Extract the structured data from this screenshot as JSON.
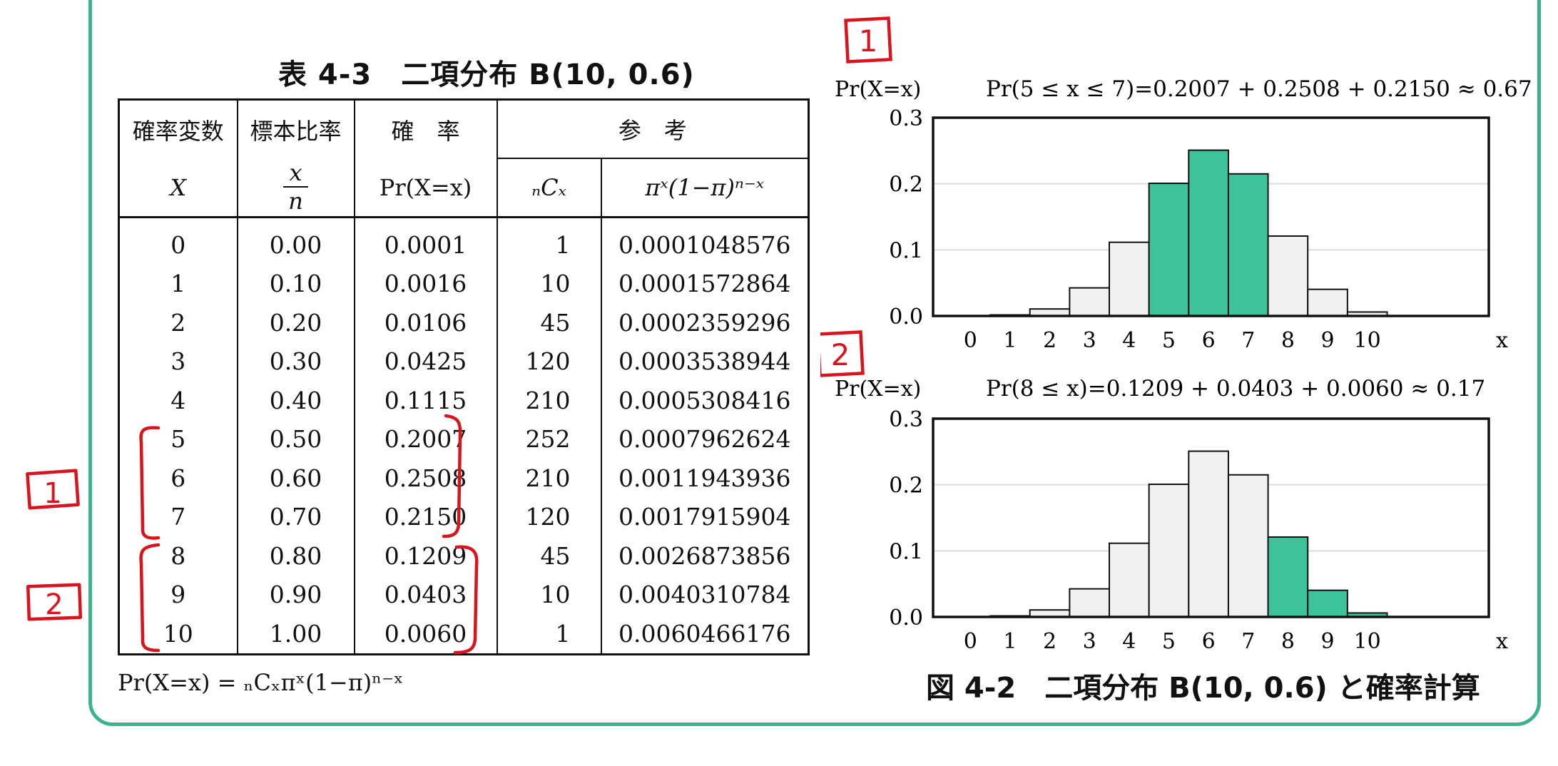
{
  "table": {
    "title": "表 4-3　二項分布 B(10, 0.6)",
    "headers": {
      "var_top": "確率変数",
      "var_sym": "X",
      "ratio_top": "標本比率",
      "ratio_num": "x",
      "ratio_den": "n",
      "prob_top": "確　率",
      "prob_sym": "Pr(X=x)",
      "ref_top": "参　考",
      "ref_comb": "ₙCₓ",
      "ref_power": "πˣ(1−π)ⁿ⁻ˣ"
    },
    "rows": [
      {
        "x": "0",
        "ratio": "0.00",
        "prob": "0.0001",
        "comb": "1",
        "power": "0.0001048576"
      },
      {
        "x": "1",
        "ratio": "0.10",
        "prob": "0.0016",
        "comb": "10",
        "power": "0.0001572864"
      },
      {
        "x": "2",
        "ratio": "0.20",
        "prob": "0.0106",
        "comb": "45",
        "power": "0.0002359296"
      },
      {
        "x": "3",
        "ratio": "0.30",
        "prob": "0.0425",
        "comb": "120",
        "power": "0.0003538944"
      },
      {
        "x": "4",
        "ratio": "0.40",
        "prob": "0.1115",
        "comb": "210",
        "power": "0.0005308416"
      },
      {
        "x": "5",
        "ratio": "0.50",
        "prob": "0.2007",
        "comb": "252",
        "power": "0.0007962624"
      },
      {
        "x": "6",
        "ratio": "0.60",
        "prob": "0.2508",
        "comb": "210",
        "power": "0.0011943936"
      },
      {
        "x": "7",
        "ratio": "0.70",
        "prob": "0.2150",
        "comb": "120",
        "power": "0.0017915904"
      },
      {
        "x": "8",
        "ratio": "0.80",
        "prob": "0.1209",
        "comb": "45",
        "power": "0.0026873856"
      },
      {
        "x": "9",
        "ratio": "0.90",
        "prob": "0.0403",
        "comb": "10",
        "power": "0.0040310784"
      },
      {
        "x": "10",
        "ratio": "1.00",
        "prob": "0.0060",
        "comb": "1",
        "power": "0.0060466176"
      }
    ],
    "formula": "Pr(X=x) = ₙCₓπˣ(1−π)ⁿ⁻ˣ"
  },
  "annotations": {
    "marker_1": "1",
    "marker_2": "2",
    "ink_color": "#d8141c"
  },
  "colors": {
    "frame": "#3bb48c",
    "highlight": "#3cc39a",
    "bar_plain": "#f1f1f1"
  },
  "chart_data": [
    {
      "type": "bar",
      "ylabel": "Pr(X=x)",
      "annotation": "Pr(5 ≤ x ≤ 7)=0.2007 + 0.2508 + 0.2150 ≈ 0.67",
      "xlabel": "x",
      "categories": [
        "0",
        "1",
        "2",
        "3",
        "4",
        "5",
        "6",
        "7",
        "8",
        "9",
        "10"
      ],
      "values": [
        0.0001,
        0.0016,
        0.0106,
        0.0425,
        0.1115,
        0.2007,
        0.2508,
        0.215,
        0.1209,
        0.0403,
        0.006
      ],
      "highlighted": [
        "5",
        "6",
        "7"
      ],
      "yticks": [
        "0.0",
        "0.1",
        "0.2",
        "0.3"
      ],
      "ylim": [
        0,
        0.3
      ],
      "grid": true
    },
    {
      "type": "bar",
      "ylabel": "Pr(X=x)",
      "annotation": "Pr(8 ≤ x)=0.1209 + 0.0403 + 0.0060 ≈ 0.17",
      "xlabel": "x",
      "categories": [
        "0",
        "1",
        "2",
        "3",
        "4",
        "5",
        "6",
        "7",
        "8",
        "9",
        "10"
      ],
      "values": [
        0.0001,
        0.0016,
        0.0106,
        0.0425,
        0.1115,
        0.2007,
        0.2508,
        0.215,
        0.1209,
        0.0403,
        0.006
      ],
      "highlighted": [
        "8",
        "9",
        "10"
      ],
      "yticks": [
        "0.0",
        "0.1",
        "0.2",
        "0.3"
      ],
      "ylim": [
        0,
        0.3
      ],
      "grid": true
    }
  ],
  "figure_caption": "図 4-2　二項分布 B(10, 0.6) と確率計算"
}
